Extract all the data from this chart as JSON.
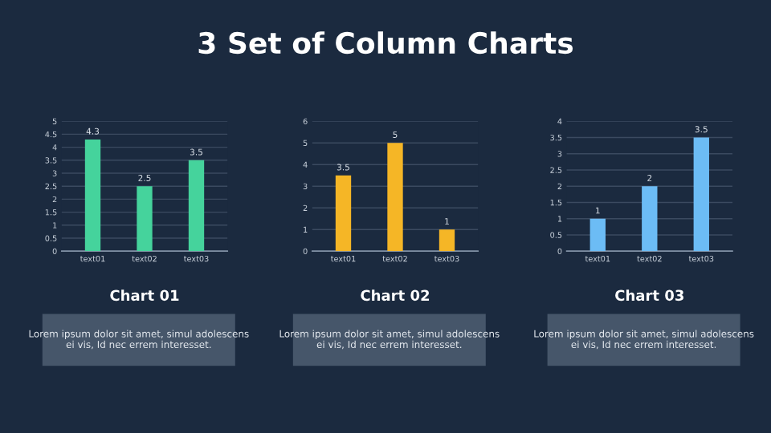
{
  "chart_data": [
    {
      "type": "bar",
      "title": "Chart 01",
      "categories": [
        "text01",
        "text02",
        "text03"
      ],
      "values": [
        4.3,
        2.5,
        3.5
      ],
      "color": "#45d39c",
      "ylim": [
        0,
        5
      ],
      "yticks": [
        0,
        0.5,
        1,
        1.5,
        2,
        2.5,
        3,
        3.5,
        4,
        4.5,
        5
      ],
      "grid": "y",
      "data_labels": true,
      "annotations": [
        "3 Set of Column Charts",
        "Lorem ipsum dolor sit amet, simul adolescens ei vis, Id nec errem interesset."
      ]
    },
    {
      "type": "bar",
      "title": "Chart 02",
      "categories": [
        "text01",
        "text02",
        "text03"
      ],
      "values": [
        3.5,
        5,
        1
      ],
      "color": "#f5b626",
      "ylim": [
        0,
        6
      ],
      "yticks": [
        0,
        1,
        2,
        3,
        4,
        5,
        6
      ],
      "grid": "y",
      "data_labels": true,
      "annotations": [
        "Lorem ipsum dolor sit amet, simul adolescens ei vis, Id nec errem interesset."
      ]
    },
    {
      "type": "bar",
      "title": "Chart 03",
      "categories": [
        "text01",
        "text02",
        "text03"
      ],
      "values": [
        1,
        2,
        3.5
      ],
      "color": "#6cbcf5",
      "ylim": [
        0,
        4
      ],
      "yticks": [
        0,
        0.5,
        1,
        1.5,
        2,
        2.5,
        3,
        3.5,
        4
      ],
      "grid": "y",
      "data_labels": true,
      "annotations": [
        "Lorem ipsum dolor sit amet, simul adolescens ei vis, Id nec errem interesset."
      ]
    }
  ]
}
